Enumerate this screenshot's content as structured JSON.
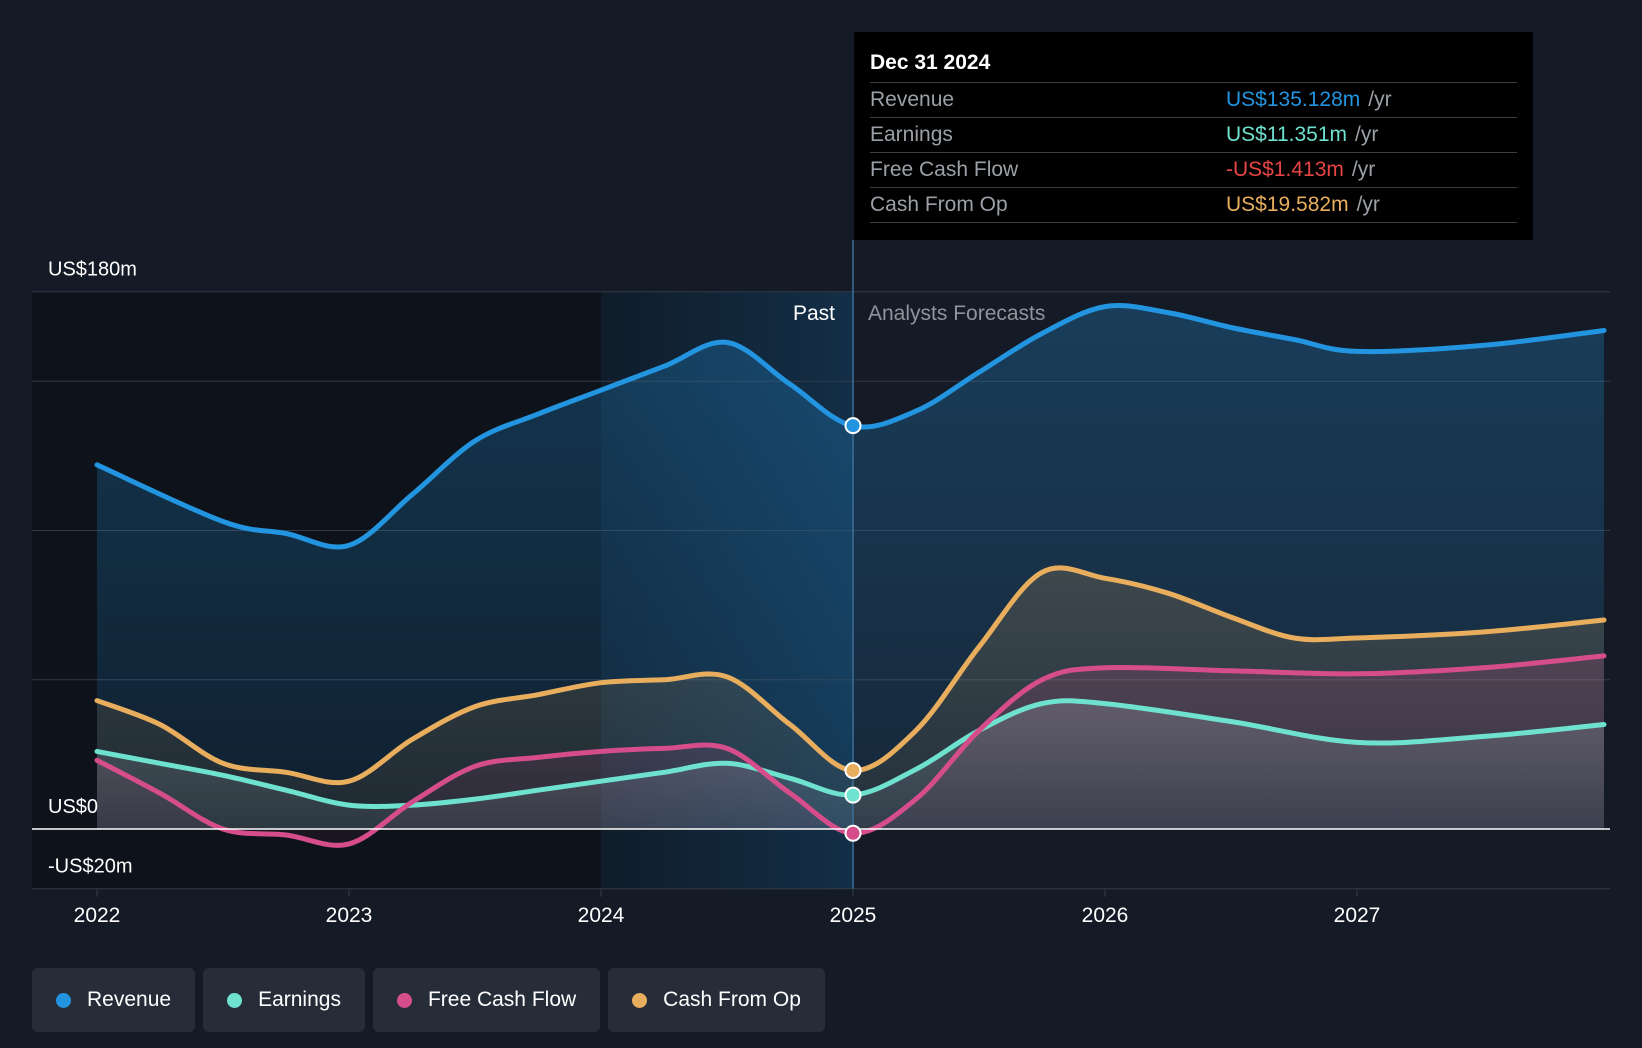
{
  "colors": {
    "background": "#151b26",
    "revenue": "#2394df",
    "earnings": "#6ee2cf",
    "free_cash_flow": "#d64d8c",
    "cash_from_op": "#e8ae5e",
    "negative": "#e64545"
  },
  "tooltip": {
    "date": "Dec 31 2024",
    "unit": "/yr",
    "rows": [
      {
        "label": "Revenue",
        "value": "US$135.128m",
        "series": "revenue"
      },
      {
        "label": "Earnings",
        "value": "US$11.351m",
        "series": "earnings"
      },
      {
        "label": "Free Cash Flow",
        "value": "-US$1.413m",
        "series": "negative"
      },
      {
        "label": "Cash From Op",
        "value": "US$19.582m",
        "series": "cash_from_op"
      }
    ]
  },
  "legend": [
    {
      "label": "Revenue",
      "series": "revenue"
    },
    {
      "label": "Earnings",
      "series": "earnings"
    },
    {
      "label": "Free Cash Flow",
      "series": "free_cash_flow"
    },
    {
      "label": "Cash From Op",
      "series": "cash_from_op"
    }
  ],
  "chart_data": {
    "type": "area",
    "title": "",
    "xlabel": "",
    "ylabel": "",
    "xlim": [
      2021.75,
      2027.98
    ],
    "ylim": [
      -20,
      180
    ],
    "y_tick_labels": [
      {
        "value": 180,
        "label": "US$180m"
      },
      {
        "value": 0,
        "label": "US$0"
      },
      {
        "value": -20,
        "label": "-US$20m"
      }
    ],
    "y_gridlines": [
      180,
      150,
      100,
      50,
      0,
      -20
    ],
    "x_ticks": [
      2022,
      2023,
      2024,
      2025,
      2026,
      2027
    ],
    "x_tick_labels": [
      "2022",
      "2023",
      "2024",
      "2025",
      "2026",
      "2027"
    ],
    "divider_x": 2025.0,
    "highlight_range": [
      2024.0,
      2025.0
    ],
    "past_label": "Past",
    "forecast_label": "Analysts Forecasts",
    "series": [
      {
        "name": "Revenue",
        "key": "revenue",
        "points": [
          [
            2022.0,
            122
          ],
          [
            2022.5,
            103
          ],
          [
            2022.75,
            99
          ],
          [
            2023.0,
            95
          ],
          [
            2023.25,
            112
          ],
          [
            2023.5,
            130
          ],
          [
            2023.75,
            139
          ],
          [
            2024.0,
            147
          ],
          [
            2024.25,
            155
          ],
          [
            2024.5,
            163
          ],
          [
            2024.75,
            149
          ],
          [
            2025.0,
            135
          ],
          [
            2025.25,
            140
          ],
          [
            2025.5,
            153
          ],
          [
            2025.75,
            166
          ],
          [
            2026.0,
            175
          ],
          [
            2026.25,
            173
          ],
          [
            2026.5,
            168
          ],
          [
            2026.75,
            164
          ],
          [
            2027.0,
            160
          ],
          [
            2027.5,
            162
          ],
          [
            2027.98,
            167
          ]
        ]
      },
      {
        "name": "Cash From Op",
        "key": "cash_from_op",
        "points": [
          [
            2022.0,
            43
          ],
          [
            2022.25,
            35
          ],
          [
            2022.5,
            22
          ],
          [
            2022.75,
            19
          ],
          [
            2023.0,
            16
          ],
          [
            2023.25,
            30
          ],
          [
            2023.5,
            41
          ],
          [
            2023.75,
            45
          ],
          [
            2024.0,
            49
          ],
          [
            2024.25,
            50
          ],
          [
            2024.5,
            51
          ],
          [
            2024.75,
            35
          ],
          [
            2025.0,
            19.6
          ],
          [
            2025.25,
            33
          ],
          [
            2025.5,
            61
          ],
          [
            2025.75,
            86
          ],
          [
            2026.0,
            84
          ],
          [
            2026.25,
            79
          ],
          [
            2026.5,
            71
          ],
          [
            2026.75,
            64
          ],
          [
            2027.0,
            64
          ],
          [
            2027.5,
            66
          ],
          [
            2027.98,
            70
          ]
        ]
      },
      {
        "name": "Free Cash Flow",
        "key": "free_cash_flow",
        "points": [
          [
            2022.0,
            23
          ],
          [
            2022.25,
            12
          ],
          [
            2022.5,
            0
          ],
          [
            2022.75,
            -2
          ],
          [
            2023.0,
            -5
          ],
          [
            2023.25,
            9
          ],
          [
            2023.5,
            21
          ],
          [
            2023.75,
            24
          ],
          [
            2024.0,
            26
          ],
          [
            2024.25,
            27
          ],
          [
            2024.5,
            27
          ],
          [
            2024.75,
            12
          ],
          [
            2025.0,
            -1.4
          ],
          [
            2025.25,
            10
          ],
          [
            2025.5,
            33
          ],
          [
            2025.75,
            50
          ],
          [
            2026.0,
            54
          ],
          [
            2026.5,
            53
          ],
          [
            2027.0,
            52
          ],
          [
            2027.5,
            54
          ],
          [
            2027.98,
            58
          ]
        ]
      },
      {
        "name": "Earnings",
        "key": "earnings",
        "points": [
          [
            2022.0,
            26
          ],
          [
            2022.25,
            22
          ],
          [
            2022.5,
            18
          ],
          [
            2022.75,
            13
          ],
          [
            2023.0,
            8
          ],
          [
            2023.25,
            8
          ],
          [
            2023.5,
            10
          ],
          [
            2023.75,
            13
          ],
          [
            2024.0,
            16
          ],
          [
            2024.25,
            19
          ],
          [
            2024.5,
            22
          ],
          [
            2024.75,
            17
          ],
          [
            2025.0,
            11.4
          ],
          [
            2025.25,
            20
          ],
          [
            2025.5,
            33
          ],
          [
            2025.75,
            42
          ],
          [
            2026.0,
            42
          ],
          [
            2026.5,
            36
          ],
          [
            2027.0,
            29
          ],
          [
            2027.5,
            31
          ],
          [
            2027.98,
            35
          ]
        ]
      }
    ],
    "markers": [
      {
        "x": 2025.0,
        "y": 135.128,
        "key": "revenue"
      },
      {
        "x": 2025.0,
        "y": 19.582,
        "key": "cash_from_op"
      },
      {
        "x": 2025.0,
        "y": 11.351,
        "key": "earnings"
      },
      {
        "x": 2025.0,
        "y": -1.413,
        "key": "free_cash_flow"
      }
    ]
  }
}
